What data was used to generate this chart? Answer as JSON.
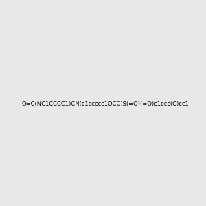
{
  "smiles": "O=C(NC1CCCC1)CN(c1ccccc1OCC)S(=O)(=O)c1ccc(C)cc1",
  "image_size": 300,
  "background_color": "#e8e8e8",
  "title": "",
  "bond_color": "#000000",
  "atom_colors": {
    "N": "#0000FF",
    "O": "#FF0000",
    "S": "#CCCC00",
    "H": "#006060"
  }
}
